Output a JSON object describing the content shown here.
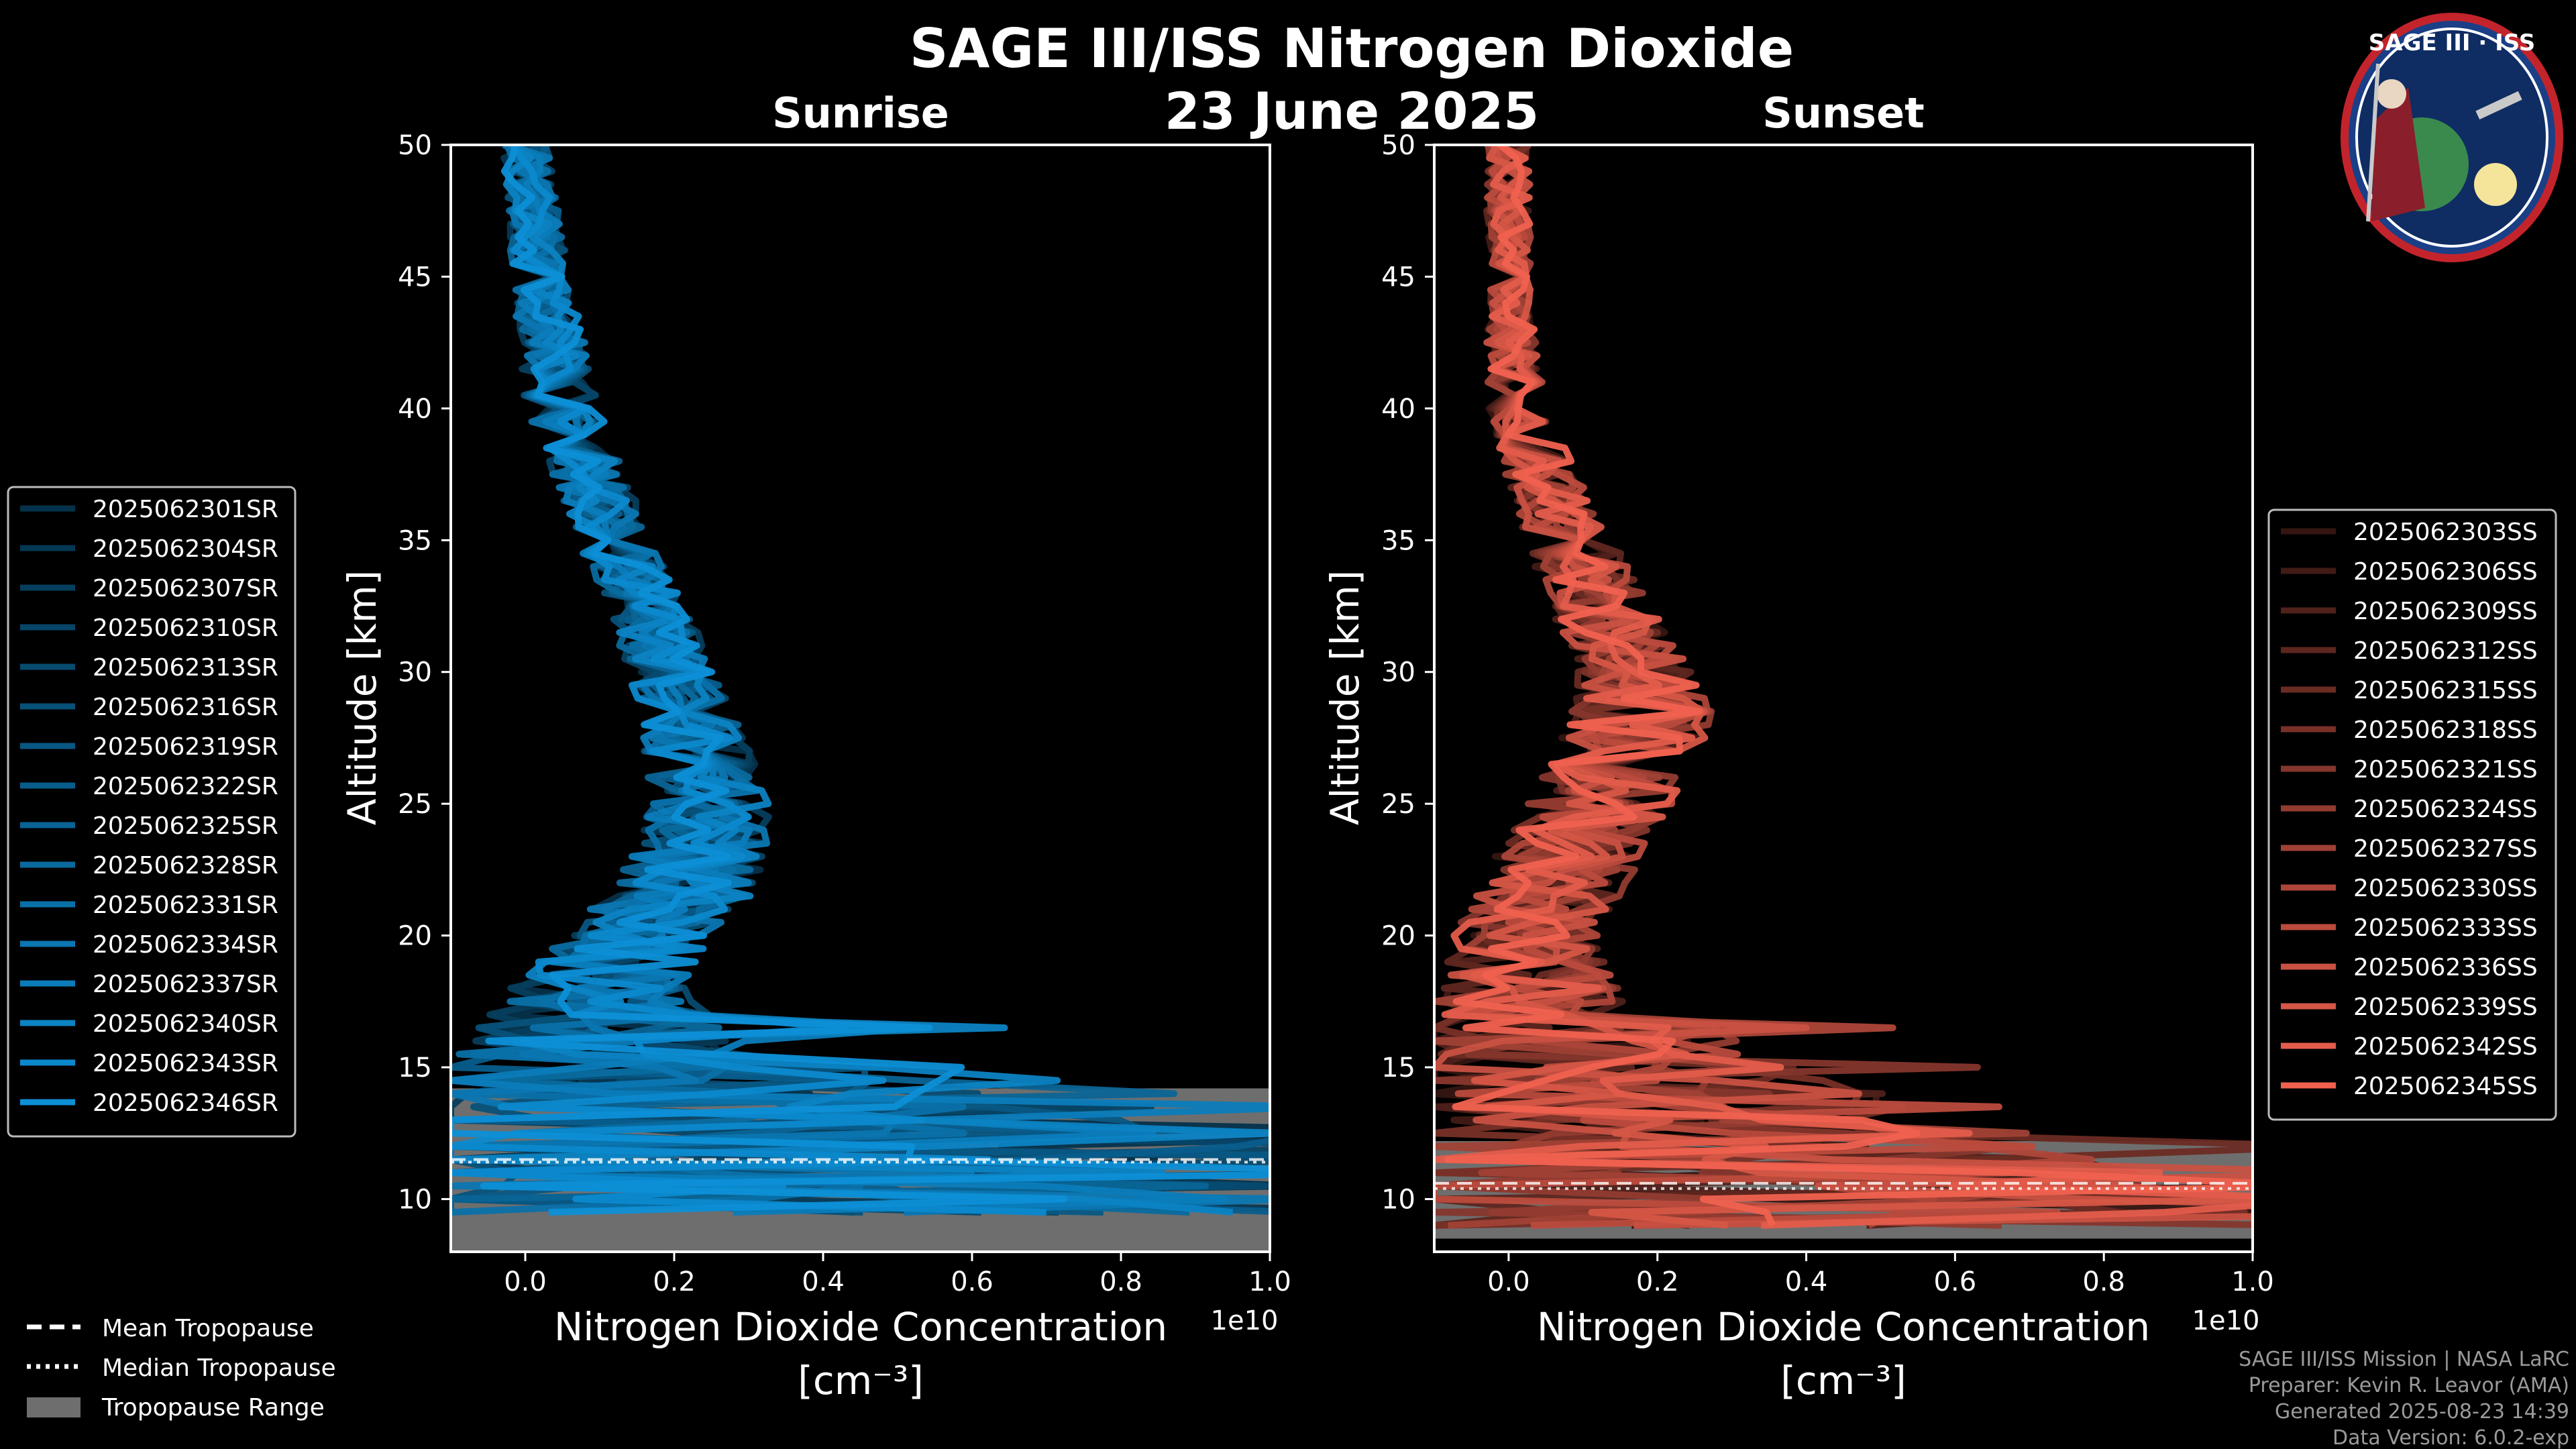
{
  "colors": {
    "background": "#000000",
    "sunrise": "#0d8fd6",
    "sunset": "#f0614f",
    "tropopause_range": "#6e6e6e",
    "axes": "#ffffff"
  },
  "figure": {
    "title": "SAGE III/ISS Nitrogen Dioxide",
    "date": "23 June 2025",
    "logo_text": "SAGE III · ISS",
    "logo_icon": "mission-patch-icon"
  },
  "footer": {
    "line1": "SAGE III/ISS Mission | NASA LaRC",
    "line2": "Preparer: Kevin R. Leavor (AMA)",
    "line3": "Generated 2025-08-23 14:39",
    "line4": "Data Version: 6.0.2-exp"
  },
  "common_legend": {
    "mean": "Mean Tropopause",
    "median": "Median Tropopause",
    "range": "Tropopause Range"
  },
  "chart_data": [
    {
      "type": "line",
      "title": "Sunrise",
      "xlabel": "Nitrogen Dioxide Concentration",
      "xunits": "[cm⁻³]",
      "ylabel": "Altitude [km]",
      "xlim": [
        -0.1,
        1.0
      ],
      "ylim": [
        8,
        50
      ],
      "x_scale": "1e10",
      "xticks": [
        "0.0",
        "0.2",
        "0.4",
        "0.6",
        "0.8",
        "1.0"
      ],
      "yticks": [
        "10",
        "15",
        "20",
        "25",
        "30",
        "35",
        "40",
        "45",
        "50"
      ],
      "tropopause": {
        "range": [
          8,
          14.2
        ],
        "mean": 11.5,
        "median": 11.4
      },
      "profile_envelope": [
        {
          "alt": 50,
          "center": 0.0,
          "spread": 0.03
        },
        {
          "alt": 45,
          "center": 0.02,
          "spread": 0.04
        },
        {
          "alt": 40,
          "center": 0.05,
          "spread": 0.05
        },
        {
          "alt": 35,
          "center": 0.12,
          "spread": 0.05
        },
        {
          "alt": 30,
          "center": 0.2,
          "spread": 0.06
        },
        {
          "alt": 25,
          "center": 0.25,
          "spread": 0.08
        },
        {
          "alt": 22,
          "center": 0.22,
          "spread": 0.1
        },
        {
          "alt": 20,
          "center": 0.15,
          "spread": 0.1
        },
        {
          "alt": 18,
          "center": 0.1,
          "spread": 0.12
        },
        {
          "alt": 16,
          "center": 0.1,
          "spread": 0.18
        },
        {
          "alt": 14,
          "center": 0.2,
          "spread": 0.5
        },
        {
          "alt": 12,
          "center": 0.4,
          "spread": 0.8
        },
        {
          "alt": 10,
          "center": 0.4,
          "spread": 0.8
        }
      ],
      "series_names": [
        "2025062301SR",
        "2025062304SR",
        "2025062307SR",
        "2025062310SR",
        "2025062313SR",
        "2025062316SR",
        "2025062319SR",
        "2025062322SR",
        "2025062325SR",
        "2025062328SR",
        "2025062331SR",
        "2025062334SR",
        "2025062337SR",
        "2025062340SR",
        "2025062343SR",
        "2025062346SR"
      ]
    },
    {
      "type": "line",
      "title": "Sunset",
      "xlabel": "Nitrogen Dioxide Concentration",
      "xunits": "[cm⁻³]",
      "ylabel": "Altitude [km]",
      "xlim": [
        -0.1,
        1.0
      ],
      "ylim": [
        8,
        50
      ],
      "x_scale": "1e10",
      "xticks": [
        "0.0",
        "0.2",
        "0.4",
        "0.6",
        "0.8",
        "1.0"
      ],
      "yticks": [
        "10",
        "15",
        "20",
        "25",
        "30",
        "35",
        "40",
        "45",
        "50"
      ],
      "tropopause": {
        "range": [
          8.5,
          12.2
        ],
        "mean": 10.6,
        "median": 10.4
      },
      "profile_envelope": [
        {
          "alt": 50,
          "center": 0.0,
          "spread": 0.03
        },
        {
          "alt": 45,
          "center": 0.0,
          "spread": 0.03
        },
        {
          "alt": 40,
          "center": 0.01,
          "spread": 0.04
        },
        {
          "alt": 35,
          "center": 0.08,
          "spread": 0.06
        },
        {
          "alt": 30,
          "center": 0.17,
          "spread": 0.08
        },
        {
          "alt": 28,
          "center": 0.18,
          "spread": 0.1
        },
        {
          "alt": 25,
          "center": 0.12,
          "spread": 0.1
        },
        {
          "alt": 22,
          "center": 0.06,
          "spread": 0.1
        },
        {
          "alt": 20,
          "center": 0.02,
          "spread": 0.1
        },
        {
          "alt": 18,
          "center": 0.03,
          "spread": 0.12
        },
        {
          "alt": 16,
          "center": 0.05,
          "spread": 0.2
        },
        {
          "alt": 14,
          "center": 0.15,
          "spread": 0.35
        },
        {
          "alt": 12,
          "center": 0.3,
          "spread": 0.5
        },
        {
          "alt": 10,
          "center": 0.4,
          "spread": 0.8
        }
      ],
      "series_names": [
        "2025062303SS",
        "2025062306SS",
        "2025062309SS",
        "2025062312SS",
        "2025062315SS",
        "2025062318SS",
        "2025062321SS",
        "2025062324SS",
        "2025062327SS",
        "2025062330SS",
        "2025062333SS",
        "2025062336SS",
        "2025062339SS",
        "2025062342SS",
        "2025062345SS"
      ]
    }
  ]
}
